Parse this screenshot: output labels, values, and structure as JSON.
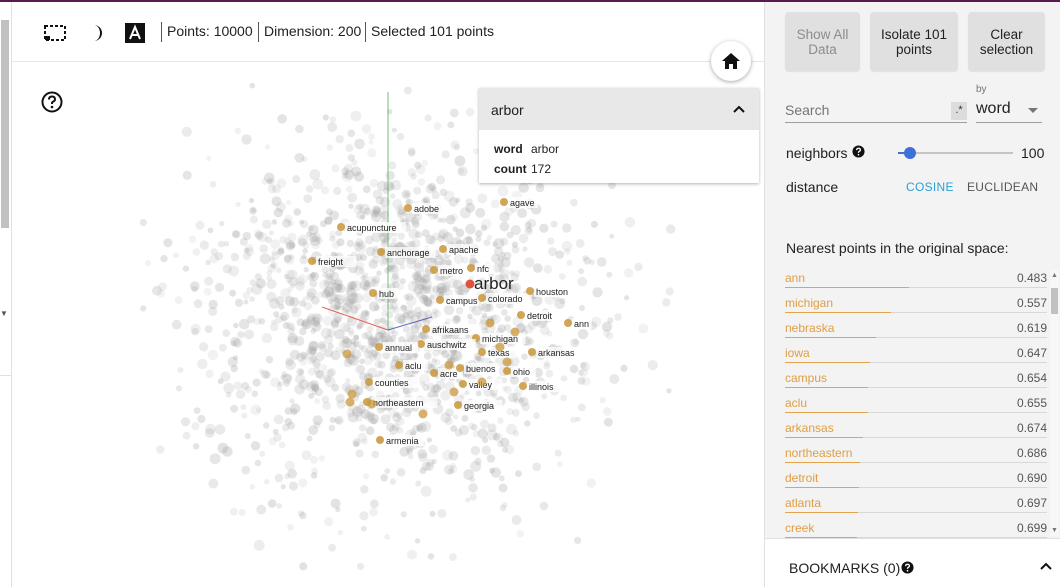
{
  "toolbar": {
    "points": "Points: 10000",
    "dimension": "Dimension: 200",
    "selected": "Selected 101 points",
    "icons": [
      "selection-box-icon",
      "night-mode-icon",
      "label-toggle-icon"
    ]
  },
  "metadata": {
    "title": "arbor",
    "fields": [
      {
        "key": "word",
        "value": "arbor"
      },
      {
        "key": "count",
        "value": "172"
      }
    ]
  },
  "panel": {
    "show_all": "Show All Data",
    "isolate": "Isolate 101 points",
    "clear": "Clear selection",
    "search_placeholder": "Search",
    "regex_label": ".*",
    "by_label": "by",
    "by_value": "word",
    "neighbors_label": "neighbors",
    "neighbors_value": "100",
    "neighbors_level": 0.1,
    "distance_label": "distance",
    "cosine": "COSINE",
    "euclidean": "EUCLIDEAN",
    "nearest_title": "Nearest points in the original space:",
    "bookmarks": "BOOKMARKS (0)"
  },
  "nearest": [
    {
      "label": "ann",
      "value": "0.483"
    },
    {
      "label": "michigan",
      "value": "0.557"
    },
    {
      "label": "nebraska",
      "value": "0.619"
    },
    {
      "label": "iowa",
      "value": "0.647"
    },
    {
      "label": "campus",
      "value": "0.654"
    },
    {
      "label": "aclu",
      "value": "0.655"
    },
    {
      "label": "arkansas",
      "value": "0.674"
    },
    {
      "label": "northeastern",
      "value": "0.686"
    },
    {
      "label": "detroit",
      "value": "0.690"
    },
    {
      "label": "atlanta",
      "value": "0.697"
    },
    {
      "label": "creek",
      "value": "0.699"
    }
  ],
  "projection": {
    "selected_label": "arbor",
    "labels": [
      "agave",
      "adobe",
      "acupuncture",
      "anchorage",
      "apache",
      "freight",
      "metro",
      "nfc",
      "hub",
      "campus",
      "colorado",
      "houston",
      "detroit",
      "ann",
      "afrikaans",
      "michigan",
      "auschwitz",
      "annual",
      "texas",
      "arkansas",
      "aclu",
      "acre",
      "buenos",
      "ohio",
      "counties",
      "valley",
      "illinois",
      "northeastern",
      "georgia",
      "armenia"
    ],
    "colors": {
      "selected": "#e0533a",
      "neighbor": "#c9973a",
      "background": "#9a9a9a"
    }
  }
}
